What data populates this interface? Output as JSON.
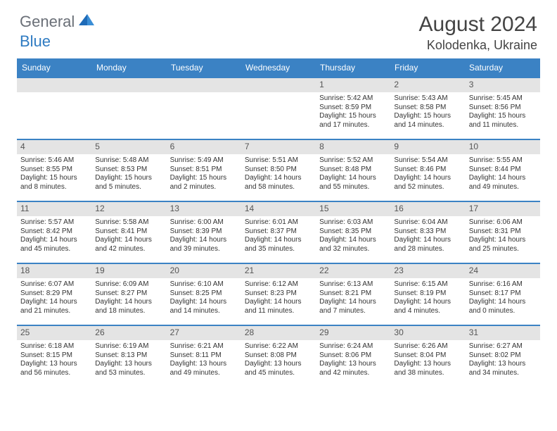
{
  "logo": {
    "text1": "General",
    "text2": "Blue"
  },
  "title": "August 2024",
  "location": "Kolodenka, Ukraine",
  "theme": {
    "header_bg": "#3b82c4",
    "divider": "#3b82c4",
    "daynum_bg": "#e4e4e4",
    "text": "#333333",
    "title_color": "#444444"
  },
  "weekdays": [
    "Sunday",
    "Monday",
    "Tuesday",
    "Wednesday",
    "Thursday",
    "Friday",
    "Saturday"
  ],
  "weeks": [
    [
      null,
      null,
      null,
      null,
      {
        "n": "1",
        "sunrise": "5:42 AM",
        "sunset": "8:59 PM",
        "dl": "15 hours and 17 minutes."
      },
      {
        "n": "2",
        "sunrise": "5:43 AM",
        "sunset": "8:58 PM",
        "dl": "15 hours and 14 minutes."
      },
      {
        "n": "3",
        "sunrise": "5:45 AM",
        "sunset": "8:56 PM",
        "dl": "15 hours and 11 minutes."
      }
    ],
    [
      {
        "n": "4",
        "sunrise": "5:46 AM",
        "sunset": "8:55 PM",
        "dl": "15 hours and 8 minutes."
      },
      {
        "n": "5",
        "sunrise": "5:48 AM",
        "sunset": "8:53 PM",
        "dl": "15 hours and 5 minutes."
      },
      {
        "n": "6",
        "sunrise": "5:49 AM",
        "sunset": "8:51 PM",
        "dl": "15 hours and 2 minutes."
      },
      {
        "n": "7",
        "sunrise": "5:51 AM",
        "sunset": "8:50 PM",
        "dl": "14 hours and 58 minutes."
      },
      {
        "n": "8",
        "sunrise": "5:52 AM",
        "sunset": "8:48 PM",
        "dl": "14 hours and 55 minutes."
      },
      {
        "n": "9",
        "sunrise": "5:54 AM",
        "sunset": "8:46 PM",
        "dl": "14 hours and 52 minutes."
      },
      {
        "n": "10",
        "sunrise": "5:55 AM",
        "sunset": "8:44 PM",
        "dl": "14 hours and 49 minutes."
      }
    ],
    [
      {
        "n": "11",
        "sunrise": "5:57 AM",
        "sunset": "8:42 PM",
        "dl": "14 hours and 45 minutes."
      },
      {
        "n": "12",
        "sunrise": "5:58 AM",
        "sunset": "8:41 PM",
        "dl": "14 hours and 42 minutes."
      },
      {
        "n": "13",
        "sunrise": "6:00 AM",
        "sunset": "8:39 PM",
        "dl": "14 hours and 39 minutes."
      },
      {
        "n": "14",
        "sunrise": "6:01 AM",
        "sunset": "8:37 PM",
        "dl": "14 hours and 35 minutes."
      },
      {
        "n": "15",
        "sunrise": "6:03 AM",
        "sunset": "8:35 PM",
        "dl": "14 hours and 32 minutes."
      },
      {
        "n": "16",
        "sunrise": "6:04 AM",
        "sunset": "8:33 PM",
        "dl": "14 hours and 28 minutes."
      },
      {
        "n": "17",
        "sunrise": "6:06 AM",
        "sunset": "8:31 PM",
        "dl": "14 hours and 25 minutes."
      }
    ],
    [
      {
        "n": "18",
        "sunrise": "6:07 AM",
        "sunset": "8:29 PM",
        "dl": "14 hours and 21 minutes."
      },
      {
        "n": "19",
        "sunrise": "6:09 AM",
        "sunset": "8:27 PM",
        "dl": "14 hours and 18 minutes."
      },
      {
        "n": "20",
        "sunrise": "6:10 AM",
        "sunset": "8:25 PM",
        "dl": "14 hours and 14 minutes."
      },
      {
        "n": "21",
        "sunrise": "6:12 AM",
        "sunset": "8:23 PM",
        "dl": "14 hours and 11 minutes."
      },
      {
        "n": "22",
        "sunrise": "6:13 AM",
        "sunset": "8:21 PM",
        "dl": "14 hours and 7 minutes."
      },
      {
        "n": "23",
        "sunrise": "6:15 AM",
        "sunset": "8:19 PM",
        "dl": "14 hours and 4 minutes."
      },
      {
        "n": "24",
        "sunrise": "6:16 AM",
        "sunset": "8:17 PM",
        "dl": "14 hours and 0 minutes."
      }
    ],
    [
      {
        "n": "25",
        "sunrise": "6:18 AM",
        "sunset": "8:15 PM",
        "dl": "13 hours and 56 minutes."
      },
      {
        "n": "26",
        "sunrise": "6:19 AM",
        "sunset": "8:13 PM",
        "dl": "13 hours and 53 minutes."
      },
      {
        "n": "27",
        "sunrise": "6:21 AM",
        "sunset": "8:11 PM",
        "dl": "13 hours and 49 minutes."
      },
      {
        "n": "28",
        "sunrise": "6:22 AM",
        "sunset": "8:08 PM",
        "dl": "13 hours and 45 minutes."
      },
      {
        "n": "29",
        "sunrise": "6:24 AM",
        "sunset": "8:06 PM",
        "dl": "13 hours and 42 minutes."
      },
      {
        "n": "30",
        "sunrise": "6:26 AM",
        "sunset": "8:04 PM",
        "dl": "13 hours and 38 minutes."
      },
      {
        "n": "31",
        "sunrise": "6:27 AM",
        "sunset": "8:02 PM",
        "dl": "13 hours and 34 minutes."
      }
    ]
  ],
  "labels": {
    "sunrise": "Sunrise: ",
    "sunset": "Sunset: ",
    "daylight": "Daylight: "
  }
}
